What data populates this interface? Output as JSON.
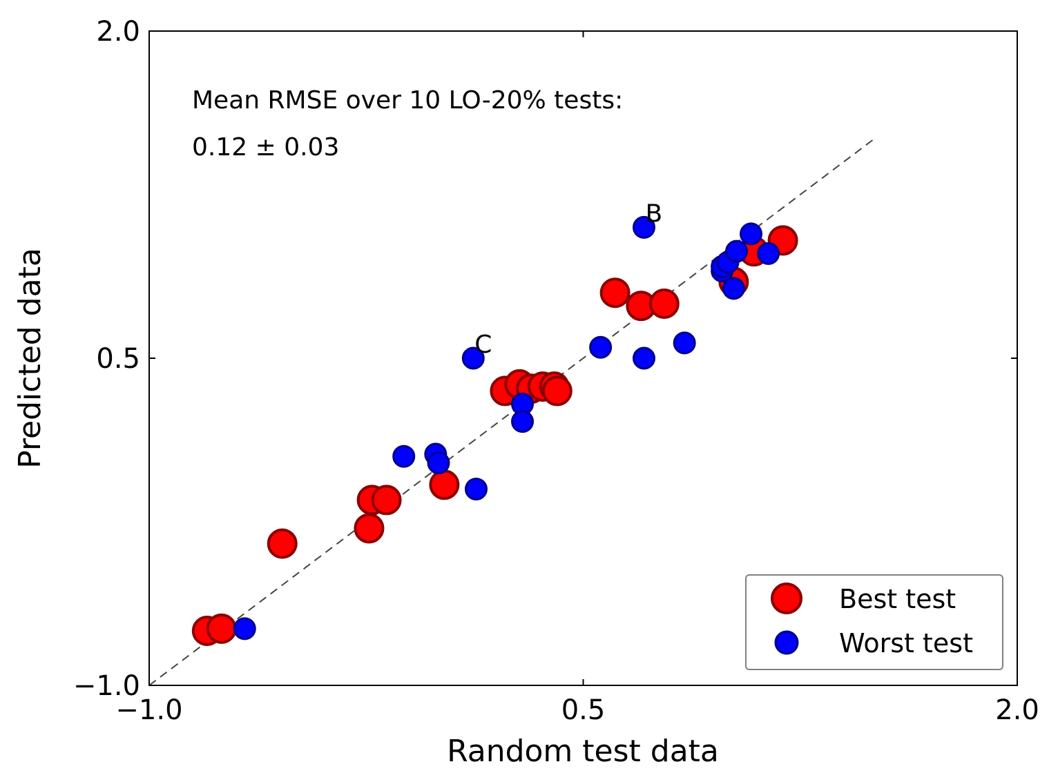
{
  "chart_data": {
    "type": "scatter",
    "xlabel": "Random test data",
    "ylabel": "Predicted data",
    "xlim": [
      -1.0,
      2.0
    ],
    "ylim": [
      -1.0,
      2.0
    ],
    "x_ticks": [
      "−1.0",
      "0.5",
      "2.0"
    ],
    "y_ticks": [
      "−1.0",
      "0.5",
      "2.0"
    ],
    "x_tick_values": [
      -1.0,
      0.5,
      2.0
    ],
    "y_tick_values": [
      -1.0,
      0.5,
      2.0
    ],
    "grid": false,
    "legend_position": "bottom-right",
    "reference_line": {
      "style": "dashed",
      "color": "#444444",
      "x": [
        -1.0,
        1.5
      ],
      "y": [
        -1.0,
        1.5
      ]
    },
    "annotation_line1": "Mean RMSE over 10 LO-20% tests:",
    "annotation_line2": "0.12 ± 0.03",
    "series": [
      {
        "name": "Best test",
        "color": "#ff0000",
        "edge_color": "#8b0000",
        "points": [
          [
            -0.8,
            -0.75
          ],
          [
            -0.75,
            -0.74
          ],
          [
            -0.54,
            -0.35
          ],
          [
            -0.23,
            -0.15
          ],
          [
            -0.18,
            -0.15
          ],
          [
            -0.24,
            -0.28
          ],
          [
            0.02,
            -0.08
          ],
          [
            0.23,
            0.35
          ],
          [
            0.28,
            0.38
          ],
          [
            0.32,
            0.36
          ],
          [
            0.36,
            0.37
          ],
          [
            0.4,
            0.37
          ],
          [
            0.41,
            0.35
          ],
          [
            0.61,
            0.8
          ],
          [
            0.7,
            0.74
          ],
          [
            0.78,
            0.75
          ],
          [
            1.02,
            0.85
          ],
          [
            1.09,
            0.99
          ],
          [
            1.19,
            1.04
          ]
        ]
      },
      {
        "name": "Worst test",
        "color": "#0000ff",
        "edge_color": "#00008b",
        "points": [
          [
            -0.67,
            -0.74
          ],
          [
            -0.12,
            0.05
          ],
          [
            -0.01,
            0.06
          ],
          [
            0.0,
            0.02
          ],
          [
            0.12,
            0.5
          ],
          [
            0.13,
            -0.1
          ],
          [
            0.29,
            0.29
          ],
          [
            0.29,
            0.21
          ],
          [
            0.56,
            0.55
          ],
          [
            0.71,
            1.1
          ],
          [
            0.71,
            0.5
          ],
          [
            0.85,
            0.57
          ],
          [
            0.98,
            0.9
          ],
          [
            0.98,
            0.92
          ],
          [
            1.0,
            0.94
          ],
          [
            1.02,
            0.82
          ],
          [
            1.03,
            0.99
          ],
          [
            1.08,
            1.07
          ],
          [
            1.14,
            0.98
          ]
        ]
      }
    ],
    "point_labels": [
      {
        "text": "B",
        "x": 0.71,
        "y": 1.1
      },
      {
        "text": "C",
        "x": 0.12,
        "y": 0.5
      }
    ]
  }
}
